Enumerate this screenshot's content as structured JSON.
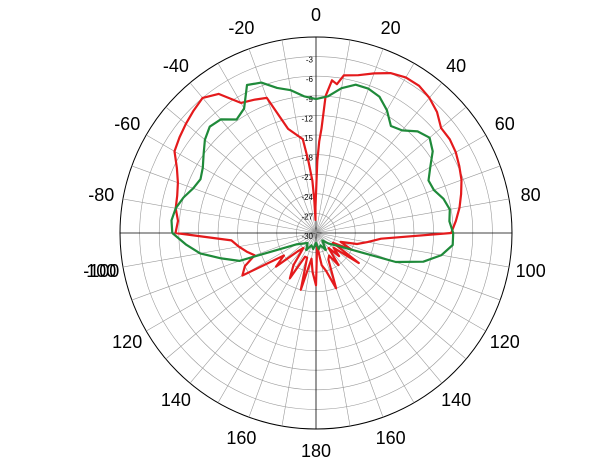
{
  "chart_data": {
    "type": "polar-line",
    "angle_unit": "degrees",
    "angle_zero": "top",
    "angle_direction": "clockwise",
    "angle_grid_step": 10,
    "angle_tick_labels": [
      "0",
      "20",
      "40",
      "60",
      "80",
      "100",
      "120",
      "140",
      "160",
      "180",
      "160",
      "140",
      "120",
      "100",
      "-100",
      "-80",
      "-60",
      "-40",
      "-20"
    ],
    "angle_tick_values": [
      0,
      20,
      40,
      60,
      80,
      100,
      120,
      140,
      160,
      180,
      200,
      220,
      240,
      260,
      -100,
      -80,
      -60,
      -40,
      -20
    ],
    "radial_axis": {
      "min": -30,
      "max": 0,
      "ring_step": 3,
      "tick_labels": [
        "-3",
        "-6",
        "-9",
        "-12",
        "-15",
        "-18",
        "-21",
        "-24",
        "-27",
        "-30"
      ],
      "tick_values": [
        -3,
        -6,
        -9,
        -12,
        -15,
        -18,
        -21,
        -24,
        -27,
        -30
      ]
    },
    "grid": true,
    "series": [
      {
        "color": "#e41a1c",
        "angles": [
          -90,
          -85,
          -80,
          -75,
          -70,
          -65,
          -60,
          -55,
          -50,
          -45,
          -40,
          -35,
          -30,
          -25,
          -20,
          -15,
          -10,
          -8,
          -6,
          -4,
          -3,
          -2,
          -1,
          0,
          1,
          2,
          3,
          4,
          6,
          8,
          10,
          15,
          20,
          25,
          30,
          35,
          40,
          45,
          50,
          55,
          60,
          65,
          70,
          75,
          80,
          85,
          90,
          95,
          100,
          105,
          110,
          115,
          120,
          125,
          130,
          135,
          140,
          145,
          150,
          155,
          160,
          165,
          170,
          175,
          180,
          185,
          190,
          195,
          200,
          205,
          210,
          215,
          220,
          225,
          230,
          235,
          240,
          245,
          250,
          255,
          260,
          265,
          270
        ],
        "values": [
          -8.5,
          -8.8,
          -8.2,
          -8.0,
          -7.5,
          -6.5,
          -5.0,
          -4.5,
          -4.0,
          -3.5,
          -3.0,
          -4.0,
          -7.0,
          -7.5,
          -8.0,
          -13.5,
          -15.0,
          -15.5,
          -19.0,
          -22.0,
          -25.0,
          -28.0,
          -26.0,
          -24.0,
          -19.0,
          -16.0,
          -14.0,
          -9.0,
          -6.5,
          -7.0,
          -5.5,
          -5.0,
          -4.0,
          -3.0,
          -2.5,
          -2.5,
          -3.0,
          -3.8,
          -5.0,
          -5.0,
          -5.3,
          -5.8,
          -6.3,
          -7.0,
          -7.7,
          -8.5,
          -9.3,
          -20.0,
          -22.0,
          -23.5,
          -26.0,
          -24.0,
          -27.0,
          -22.0,
          -26.5,
          -25.0,
          -27.0,
          -24.0,
          -26.0,
          -25.5,
          -21.0,
          -24.0,
          -25.0,
          -28.0,
          -22.0,
          -24.0,
          -26.0,
          -21.0,
          -26.0,
          -26.0,
          -22.0,
          -24.0,
          -27.0,
          -26.0,
          -22.0,
          -24.0,
          -17.0,
          -18.0,
          -20.0,
          -19.0,
          -18.0,
          -17.0,
          -8.5
        ]
      },
      {
        "color": "#1f8a3a",
        "angles": [
          -90,
          -85,
          -80,
          -75,
          -70,
          -65,
          -60,
          -55,
          -50,
          -45,
          -40,
          -35,
          -30,
          -25,
          -20,
          -15,
          -10,
          -5,
          0,
          5,
          10,
          15,
          20,
          25,
          30,
          35,
          40,
          45,
          50,
          55,
          60,
          65,
          70,
          75,
          80,
          85,
          90,
          95,
          100,
          105,
          110,
          120,
          130,
          140,
          150,
          160,
          170,
          180,
          190,
          200,
          210,
          220,
          230,
          240,
          250,
          255,
          260,
          265,
          270
        ],
        "values": [
          -8.0,
          -7.8,
          -8.2,
          -9.0,
          -10.0,
          -10.5,
          -10.0,
          -9.0,
          -7.8,
          -7.0,
          -7.3,
          -8.8,
          -8.0,
          -5.0,
          -5.5,
          -7.0,
          -7.8,
          -9.0,
          -9.5,
          -9.0,
          -7.5,
          -6.5,
          -6.5,
          -7.0,
          -8.3,
          -10.0,
          -9.5,
          -8.0,
          -7.3,
          -8.2,
          -9.8,
          -11.0,
          -10.8,
          -9.8,
          -9.2,
          -9.5,
          -9.0,
          -9.0,
          -10.5,
          -13.0,
          -17.0,
          -26.0,
          -27.5,
          -28.5,
          -27.0,
          -28.0,
          -27.5,
          -28.5,
          -27.5,
          -28.0,
          -27.0,
          -28.0,
          -27.5,
          -26.5,
          -17.5,
          -15.0,
          -12.0,
          -10.0,
          -8.0
        ]
      }
    ]
  }
}
